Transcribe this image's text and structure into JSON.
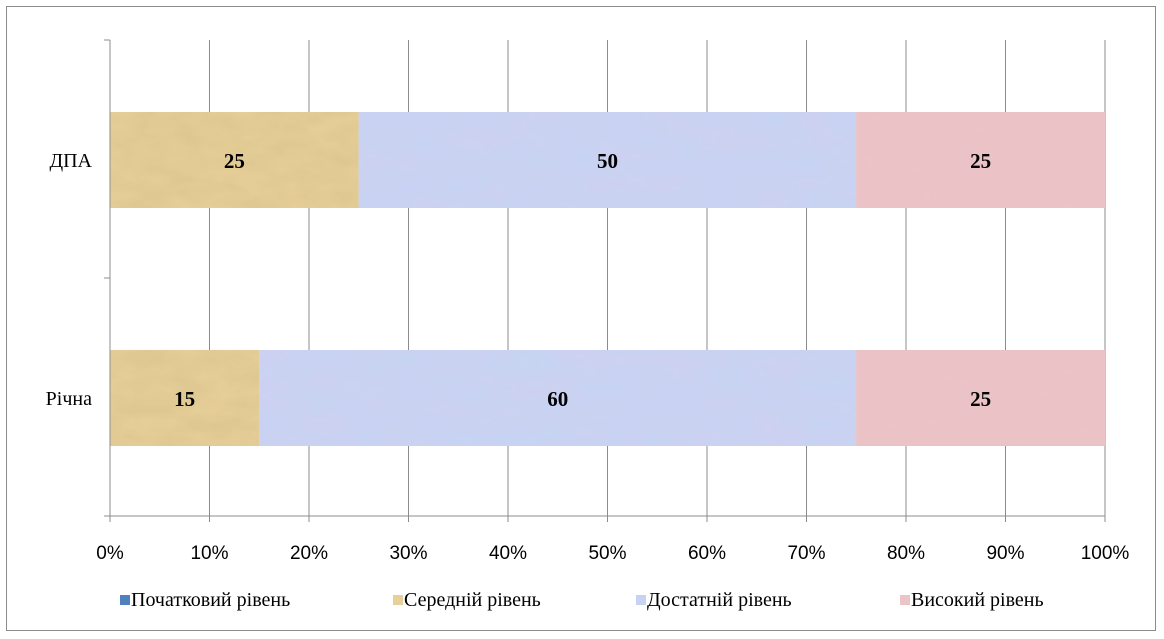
{
  "chart_data": {
    "type": "bar",
    "orientation": "horizontal",
    "stacked": "percent",
    "title": "",
    "xlabel": "",
    "ylabel": "",
    "categories": [
      "ДПА",
      "Річна"
    ],
    "series": [
      {
        "name": "Початковий рівень",
        "values": [
          0,
          0
        ],
        "color": "#4f81bd"
      },
      {
        "name": "Середній рівень",
        "values": [
          25,
          15
        ],
        "color": "#e8d09a"
      },
      {
        "name": "Достатній рівень",
        "values": [
          50,
          60
        ],
        "color": "#c6d4f2"
      },
      {
        "name": "Високий рівень",
        "values": [
          25,
          25
        ],
        "color": "#ecc3c6"
      }
    ],
    "xlim": [
      0,
      100
    ],
    "x_ticks": [
      "0%",
      "10%",
      "20%",
      "30%",
      "40%",
      "50%",
      "60%",
      "70%",
      "80%",
      "90%",
      "100%"
    ],
    "grid": true,
    "legend_position": "bottom"
  }
}
